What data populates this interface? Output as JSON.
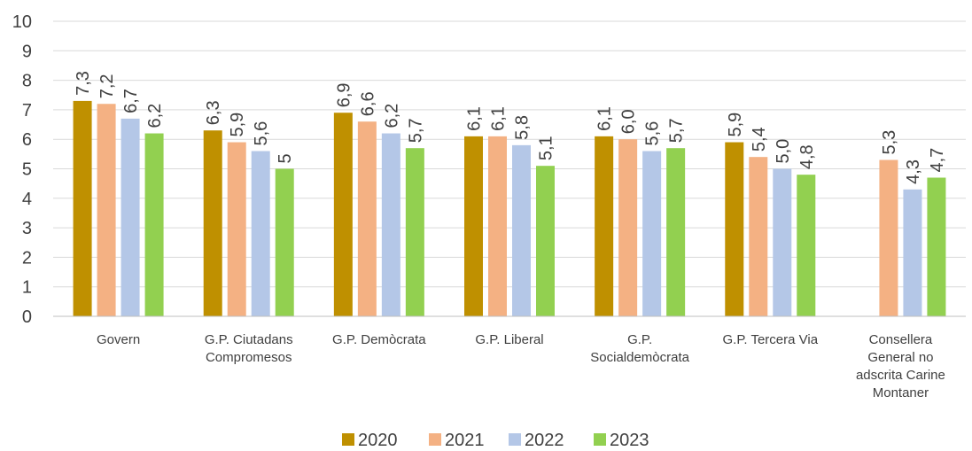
{
  "chart_data": {
    "type": "bar",
    "title": "",
    "xlabel": "",
    "ylabel": "",
    "ylim": [
      0,
      10
    ],
    "yticks": [
      "0",
      "1",
      "2",
      "3",
      "4",
      "5",
      "6",
      "7",
      "8",
      "9",
      "10"
    ],
    "grid": true,
    "legend_position": "bottom",
    "categories": [
      [
        "Govern"
      ],
      [
        "G.P. Ciutadans",
        "Compromesos"
      ],
      [
        "G.P. Demòcrata"
      ],
      [
        "G.P. Liberal"
      ],
      [
        "G.P.",
        "Socialdemòcrata"
      ],
      [
        "G.P. Tercera Via"
      ],
      [
        "Consellera",
        "General no",
        "adscrita Carine",
        "Montaner"
      ]
    ],
    "series": [
      {
        "name": "2020",
        "color": "#BF9000",
        "values": [
          7.3,
          6.3,
          6.9,
          6.1,
          6.1,
          5.9,
          null
        ],
        "labels": [
          "7,3",
          "6,3",
          "6,9",
          "6,1",
          "6,1",
          "5,9",
          ""
        ]
      },
      {
        "name": "2021",
        "color": "#F4B183",
        "values": [
          7.2,
          5.9,
          6.6,
          6.1,
          6.0,
          5.4,
          5.3
        ],
        "labels": [
          "7,2",
          "5,9",
          "6,6",
          "6,1",
          "6,0",
          "5,4",
          "5,3"
        ]
      },
      {
        "name": "2022",
        "color": "#B4C7E7",
        "values": [
          6.7,
          5.6,
          6.2,
          5.8,
          5.6,
          5.0,
          4.3
        ],
        "labels": [
          "6,7",
          "5,6",
          "6,2",
          "5,8",
          "5,6",
          "5,0",
          "4,3"
        ]
      },
      {
        "name": "2023",
        "color": "#92D050",
        "values": [
          6.2,
          5.0,
          5.7,
          5.1,
          5.7,
          4.8,
          4.7
        ],
        "labels": [
          "6,2",
          "5",
          "5,7",
          "5,1",
          "5,7",
          "4,8",
          "4,7"
        ]
      }
    ],
    "gridline_color": "#D9D9D9",
    "axis_color": "#BFBFBF"
  }
}
